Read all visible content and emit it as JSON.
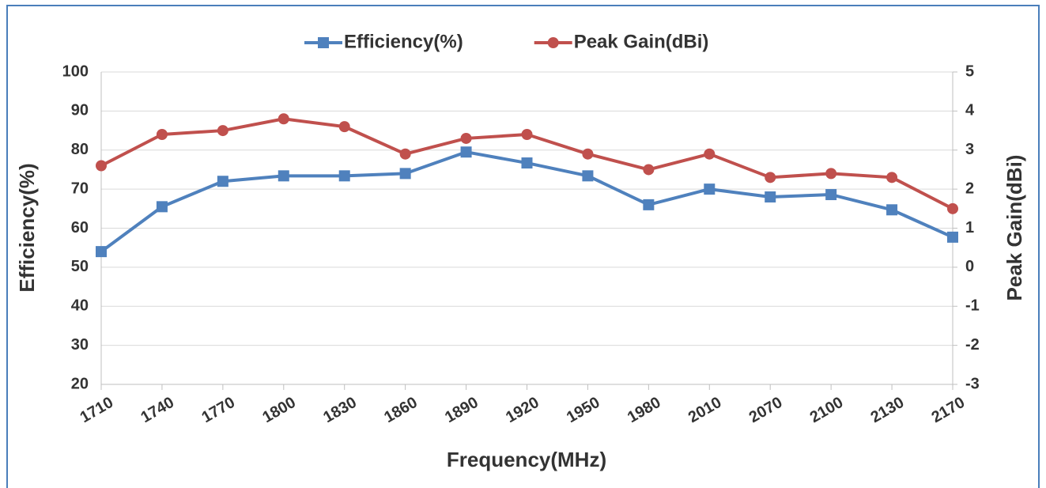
{
  "chart_data": {
    "type": "line",
    "xlabel": "Frequency(MHz)",
    "ylabel": "Efficiency(%)",
    "y2label": "Peak Gain(dBi)",
    "categories": [
      "1710",
      "1740",
      "1770",
      "1800",
      "1830",
      "1860",
      "1890",
      "1920",
      "1950",
      "1980",
      "2010",
      "2070",
      "2100",
      "2130",
      "2170"
    ],
    "series": [
      {
        "name": "Efficiency(%)",
        "color": "#4f81bd",
        "marker": "square",
        "axis": "y",
        "values": [
          54,
          65.5,
          72,
          73.4,
          73.4,
          74,
          79.5,
          76.7,
          73.4,
          66,
          70,
          68,
          68.6,
          64.7,
          57.7
        ]
      },
      {
        "name": "Peak Gain(dBi)",
        "color": "#c0504d",
        "marker": "circle",
        "axis": "y2",
        "values": [
          2.6,
          3.4,
          3.5,
          3.8,
          3.6,
          2.9,
          3.3,
          3.4,
          2.9,
          2.5,
          2.9,
          2.3,
          2.4,
          2.3,
          1.5
        ]
      }
    ],
    "ylim": [
      20,
      100
    ],
    "yticks": [
      20,
      30,
      40,
      50,
      60,
      70,
      80,
      90,
      100
    ],
    "y2lim": [
      -3,
      5
    ],
    "y2ticks": [
      -3,
      -2,
      -1,
      0,
      1,
      2,
      3,
      4,
      5
    ],
    "grid": true,
    "legend": "top"
  }
}
